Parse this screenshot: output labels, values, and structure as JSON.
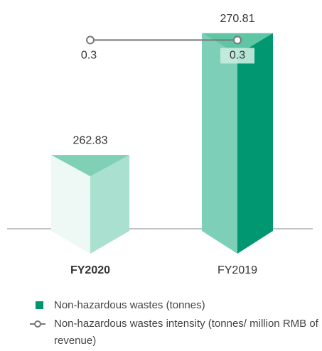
{
  "chart_data": {
    "type": "bar",
    "categories": [
      "FY2020",
      "FY2019"
    ],
    "series": [
      {
        "name": "Non-hazardous wastes (tonnes)",
        "type": "bar",
        "color": "#00956f",
        "values": [
          262.83,
          270.81
        ]
      },
      {
        "name": "Non-hazardous wastes intensity (tonnes/ million RMB of revenue)",
        "type": "line",
        "axis": "y2",
        "color": "#777777",
        "values": [
          0.3,
          0.3
        ]
      }
    ],
    "ylim": [
      258,
      272
    ],
    "y2lim": [
      0,
      0.34
    ]
  }
}
